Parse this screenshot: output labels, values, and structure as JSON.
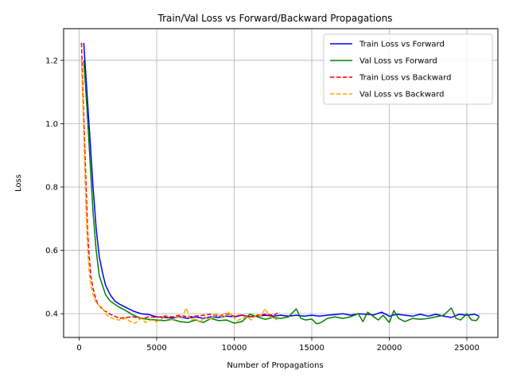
{
  "chart_data": {
    "type": "line",
    "title": "Train/Val Loss vs Forward/Backward Propagations",
    "xlabel": "Number of Propagations",
    "ylabel": "Loss",
    "xlim": [
      -1000,
      27000
    ],
    "ylim": [
      0.325,
      1.3
    ],
    "xticks": [
      0,
      5000,
      10000,
      15000,
      20000,
      25000
    ],
    "yticks": [
      0.4,
      0.6,
      0.8,
      1.0,
      1.2
    ],
    "grid": true,
    "legend_position": "top-right",
    "series": [
      {
        "name": "Train Loss vs Forward",
        "color": "#0000ff",
        "dash": "solid",
        "x": [
          300,
          500,
          700,
          900,
          1100,
          1300,
          1500,
          1700,
          2000,
          2300,
          2600,
          3000,
          3500,
          4000,
          4500,
          5000,
          5500,
          6000,
          6500,
          7000,
          7500,
          8000,
          8500,
          9000,
          9500,
          10000,
          10500,
          11000,
          11500,
          12000,
          12500,
          13000,
          13500,
          14000,
          14500,
          15000,
          15500,
          16000,
          16500,
          17000,
          17500,
          18000,
          18500,
          19000,
          19500,
          20000,
          20500,
          21000,
          21500,
          22000,
          22500,
          23000,
          23500,
          24000,
          24500,
          25000,
          25500,
          25800
        ],
        "y": [
          1.255,
          1.1,
          0.95,
          0.8,
          0.67,
          0.58,
          0.53,
          0.49,
          0.46,
          0.44,
          0.43,
          0.42,
          0.408,
          0.4,
          0.397,
          0.39,
          0.388,
          0.386,
          0.39,
          0.385,
          0.39,
          0.385,
          0.39,
          0.388,
          0.392,
          0.39,
          0.395,
          0.39,
          0.392,
          0.395,
          0.392,
          0.395,
          0.392,
          0.395,
          0.392,
          0.395,
          0.392,
          0.395,
          0.397,
          0.4,
          0.395,
          0.4,
          0.398,
          0.396,
          0.405,
          0.392,
          0.398,
          0.395,
          0.392,
          0.398,
          0.392,
          0.398,
          0.392,
          0.388,
          0.398,
          0.395,
          0.398,
          0.392
        ]
      },
      {
        "name": "Val Loss vs Forward",
        "color": "#008000",
        "dash": "solid",
        "x": [
          300,
          500,
          700,
          900,
          1100,
          1300,
          1500,
          1700,
          2000,
          2300,
          2600,
          3000,
          3500,
          4000,
          4500,
          5000,
          5500,
          6000,
          6500,
          7000,
          7500,
          8000,
          8500,
          9000,
          9500,
          10000,
          10500,
          11000,
          11500,
          12000,
          12500,
          13000,
          13500,
          14000,
          14300,
          14600,
          15000,
          15300,
          15600,
          16000,
          16500,
          17000,
          17500,
          18000,
          18300,
          18600,
          19000,
          19300,
          19600,
          20000,
          20300,
          20600,
          21000,
          21500,
          22000,
          22500,
          23000,
          23500,
          24000,
          24300,
          24600,
          25000,
          25300,
          25600,
          25800
        ],
        "y": [
          1.2,
          1.05,
          0.88,
          0.72,
          0.6,
          0.52,
          0.49,
          0.46,
          0.44,
          0.43,
          0.42,
          0.41,
          0.395,
          0.385,
          0.382,
          0.38,
          0.378,
          0.382,
          0.375,
          0.372,
          0.38,
          0.372,
          0.385,
          0.378,
          0.38,
          0.37,
          0.375,
          0.398,
          0.39,
          0.382,
          0.388,
          0.385,
          0.39,
          0.415,
          0.385,
          0.38,
          0.383,
          0.368,
          0.372,
          0.385,
          0.39,
          0.385,
          0.39,
          0.4,
          0.375,
          0.405,
          0.39,
          0.38,
          0.395,
          0.372,
          0.41,
          0.385,
          0.375,
          0.385,
          0.382,
          0.385,
          0.39,
          0.395,
          0.418,
          0.385,
          0.38,
          0.4,
          0.38,
          0.378,
          0.39
        ]
      },
      {
        "name": "Train Loss vs Backward",
        "color": "#ff0000",
        "dash": "dashed",
        "x": [
          150,
          250,
          350,
          450,
          550,
          650,
          750,
          900,
          1050,
          1200,
          1400,
          1600,
          1800,
          2000,
          2300,
          2600,
          3000,
          3500,
          4000,
          4500,
          5000,
          5500,
          6000,
          6500,
          7000,
          7500,
          8000,
          8500,
          9000,
          9500,
          10000,
          10500,
          11000,
          11500,
          12000,
          12500,
          12800
        ],
        "y": [
          1.255,
          1.1,
          0.95,
          0.8,
          0.66,
          0.58,
          0.52,
          0.48,
          0.45,
          0.43,
          0.42,
          0.41,
          0.405,
          0.398,
          0.392,
          0.385,
          0.388,
          0.39,
          0.385,
          0.39,
          0.388,
          0.392,
          0.39,
          0.395,
          0.39,
          0.392,
          0.395,
          0.398,
          0.392,
          0.4,
          0.392,
          0.396,
          0.39,
          0.395,
          0.398,
          0.395,
          0.402
        ]
      },
      {
        "name": "Val Loss vs Backward",
        "color": "#ffa500",
        "dash": "dashed",
        "x": [
          150,
          250,
          350,
          450,
          550,
          650,
          750,
          900,
          1050,
          1200,
          1400,
          1600,
          1800,
          2000,
          2300,
          2600,
          3000,
          3300,
          3600,
          4000,
          4300,
          4600,
          5000,
          5300,
          5600,
          6000,
          6300,
          6600,
          6900,
          7200,
          7500,
          7800,
          8100,
          8400,
          8700,
          9000,
          9300,
          9600,
          9900,
          10200,
          10500,
          10800,
          11100,
          11400,
          11700,
          12000,
          12300,
          12600,
          12800
        ],
        "y": [
          1.2,
          1.05,
          0.88,
          0.72,
          0.6,
          0.53,
          0.49,
          0.46,
          0.44,
          0.43,
          0.42,
          0.41,
          0.395,
          0.388,
          0.382,
          0.38,
          0.385,
          0.375,
          0.37,
          0.385,
          0.372,
          0.38,
          0.375,
          0.382,
          0.395,
          0.38,
          0.39,
          0.385,
          0.418,
          0.378,
          0.385,
          0.372,
          0.39,
          0.38,
          0.395,
          0.4,
          0.385,
          0.405,
          0.392,
          0.378,
          0.385,
          0.39,
          0.38,
          0.395,
          0.392,
          0.415,
          0.39,
          0.385,
          0.38
        ]
      }
    ]
  }
}
